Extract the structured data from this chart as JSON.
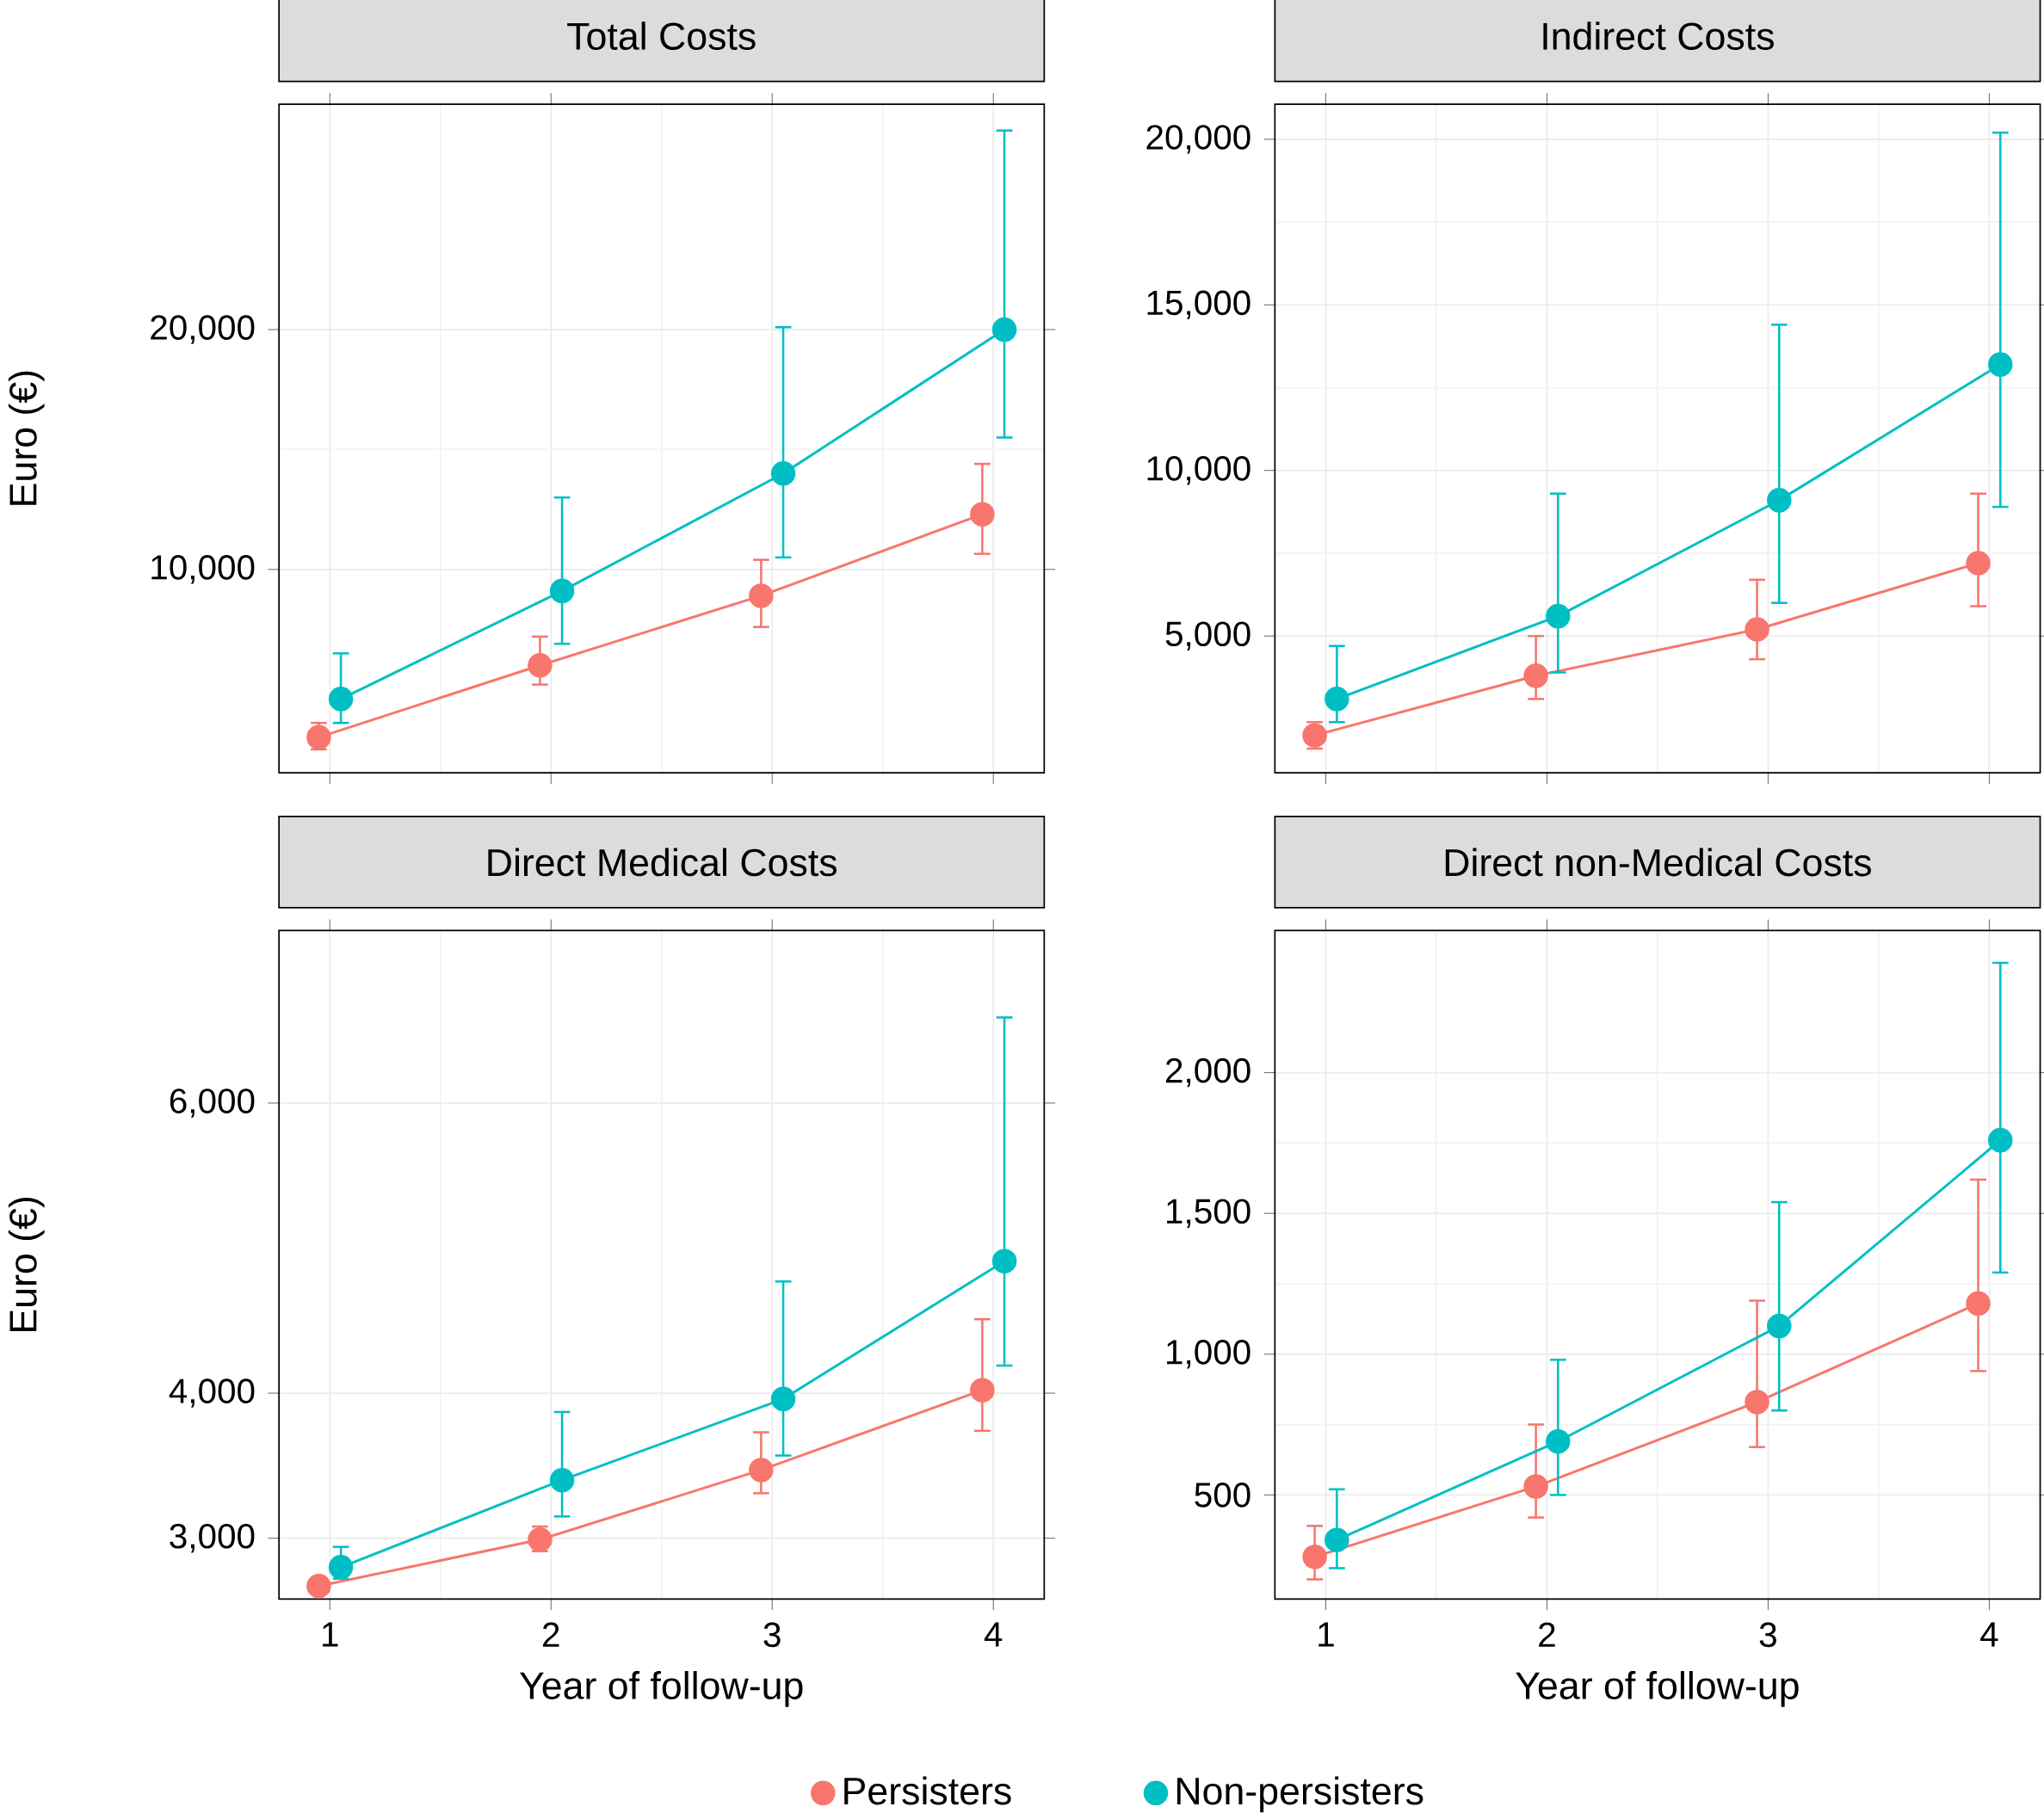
{
  "chart_data": [
    {
      "type": "line",
      "title": "Total Costs",
      "ylabel": "Euro (€)",
      "xlim": [
        0.77,
        4.23
      ],
      "xticks": [
        1,
        2,
        3,
        4
      ],
      "ylim": [
        1520,
        29400
      ],
      "yticks": [
        {
          "value": 10000,
          "label": "10,000"
        },
        {
          "value": 20000,
          "label": "20,000"
        }
      ],
      "grid": true,
      "marker": "circle",
      "tick_labels": "y",
      "series": [
        {
          "color": "#f8766d",
          "x": [
            0.95,
            1.95,
            2.95,
            3.95
          ],
          "values": [
            3000,
            6000,
            8900,
            12300
          ],
          "errors": [
            [
              2500,
              3600
            ],
            [
              5200,
              7200
            ],
            [
              7600,
              10400
            ],
            [
              10650,
              14400
            ]
          ]
        },
        {
          "color": "#00bfc4",
          "x": [
            1.05,
            2.05,
            3.05,
            4.05
          ],
          "values": [
            4600,
            9100,
            14000,
            20000
          ],
          "errors": [
            [
              3600,
              6500
            ],
            [
              6900,
              13000
            ],
            [
              10500,
              20100
            ],
            [
              15500,
              28300
            ]
          ]
        }
      ]
    },
    {
      "type": "line",
      "title": "Indirect Costs",
      "xlim": [
        0.77,
        4.23
      ],
      "xticks": [
        1,
        2,
        3,
        4
      ],
      "ylim": [
        870,
        21060
      ],
      "yticks": [
        {
          "value": 5000,
          "label": "5,000"
        },
        {
          "value": 10000,
          "label": "10,000"
        },
        {
          "value": 15000,
          "label": "15,000"
        },
        {
          "value": 20000,
          "label": "20,000"
        }
      ],
      "grid": true,
      "marker": "circle",
      "tick_labels": "y",
      "series": [
        {
          "color": "#f8766d",
          "x": [
            0.95,
            1.95,
            2.95,
            3.95
          ],
          "values": [
            2000,
            3800,
            5200,
            7200
          ],
          "errors": [
            [
              1600,
              2400
            ],
            [
              3100,
              5000
            ],
            [
              4300,
              6700
            ],
            [
              5900,
              9300
            ]
          ]
        },
        {
          "color": "#00bfc4",
          "x": [
            1.05,
            2.05,
            3.05,
            4.05
          ],
          "values": [
            3100,
            5600,
            9100,
            13200
          ],
          "errors": [
            [
              2400,
              4700
            ],
            [
              3900,
              9300
            ],
            [
              6000,
              14400
            ],
            [
              8900,
              20200
            ]
          ]
        }
      ]
    },
    {
      "type": "line",
      "title": "Direct Medical Costs",
      "xlabel": "Year of follow-up",
      "ylabel": "Euro (€)",
      "xlim": [
        0.77,
        4.23
      ],
      "xticks": [
        1,
        2,
        3,
        4
      ],
      "ylim": [
        2580,
        7190
      ],
      "yticks": [
        {
          "value": 3000,
          "label": "3,000"
        },
        {
          "value": 4000,
          "label": "4,000"
        },
        {
          "value": 6000,
          "label": "6,000"
        }
      ],
      "grid": true,
      "marker": "circle",
      "series": [
        {
          "color": "#f8766d",
          "x": [
            0.95,
            1.95,
            2.95,
            3.95
          ],
          "values": [
            2670,
            2990,
            3470,
            4020
          ],
          "errors": [
            null,
            [
              2910,
              3080
            ],
            [
              3310,
              3730
            ],
            [
              3740,
              4510
            ]
          ]
        },
        {
          "color": "#00bfc4",
          "x": [
            1.05,
            2.05,
            3.05,
            4.05
          ],
          "values": [
            2800,
            3400,
            3960,
            4910
          ],
          "errors": [
            [
              2720,
              2940
            ],
            [
              3150,
              3870
            ],
            [
              3570,
              4770
            ],
            [
              4190,
              6590
            ]
          ]
        }
      ]
    },
    {
      "type": "line",
      "title": "Direct non-Medical Costs",
      "xlabel": "Year of follow-up",
      "xlim": [
        0.77,
        4.23
      ],
      "xticks": [
        1,
        2,
        3,
        4
      ],
      "ylim": [
        130,
        2505
      ],
      "yticks": [
        500,
        {
          "value": 1000,
          "label": "1,000"
        },
        {
          "value": 1500,
          "label": "1,500"
        },
        {
          "value": 2000,
          "label": "2,000"
        }
      ],
      "grid": true,
      "marker": "circle",
      "legend": "bottom",
      "series": [
        {
          "name": "Persisters",
          "color": "#f8766d",
          "x": [
            0.95,
            1.95,
            2.95,
            3.95
          ],
          "values": [
            280,
            530,
            830,
            1180
          ],
          "errors": [
            [
              200,
              390
            ],
            [
              420,
              750
            ],
            [
              670,
              1190
            ],
            [
              940,
              1620
            ]
          ]
        },
        {
          "name": "Non-persisters",
          "color": "#00bfc4",
          "x": [
            1.05,
            2.05,
            3.05,
            4.05
          ],
          "values": [
            340,
            690,
            1100,
            1760
          ],
          "errors": [
            [
              240,
              520
            ],
            [
              500,
              980
            ],
            [
              800,
              1540
            ],
            [
              1290,
              2390
            ]
          ]
        }
      ]
    }
  ]
}
